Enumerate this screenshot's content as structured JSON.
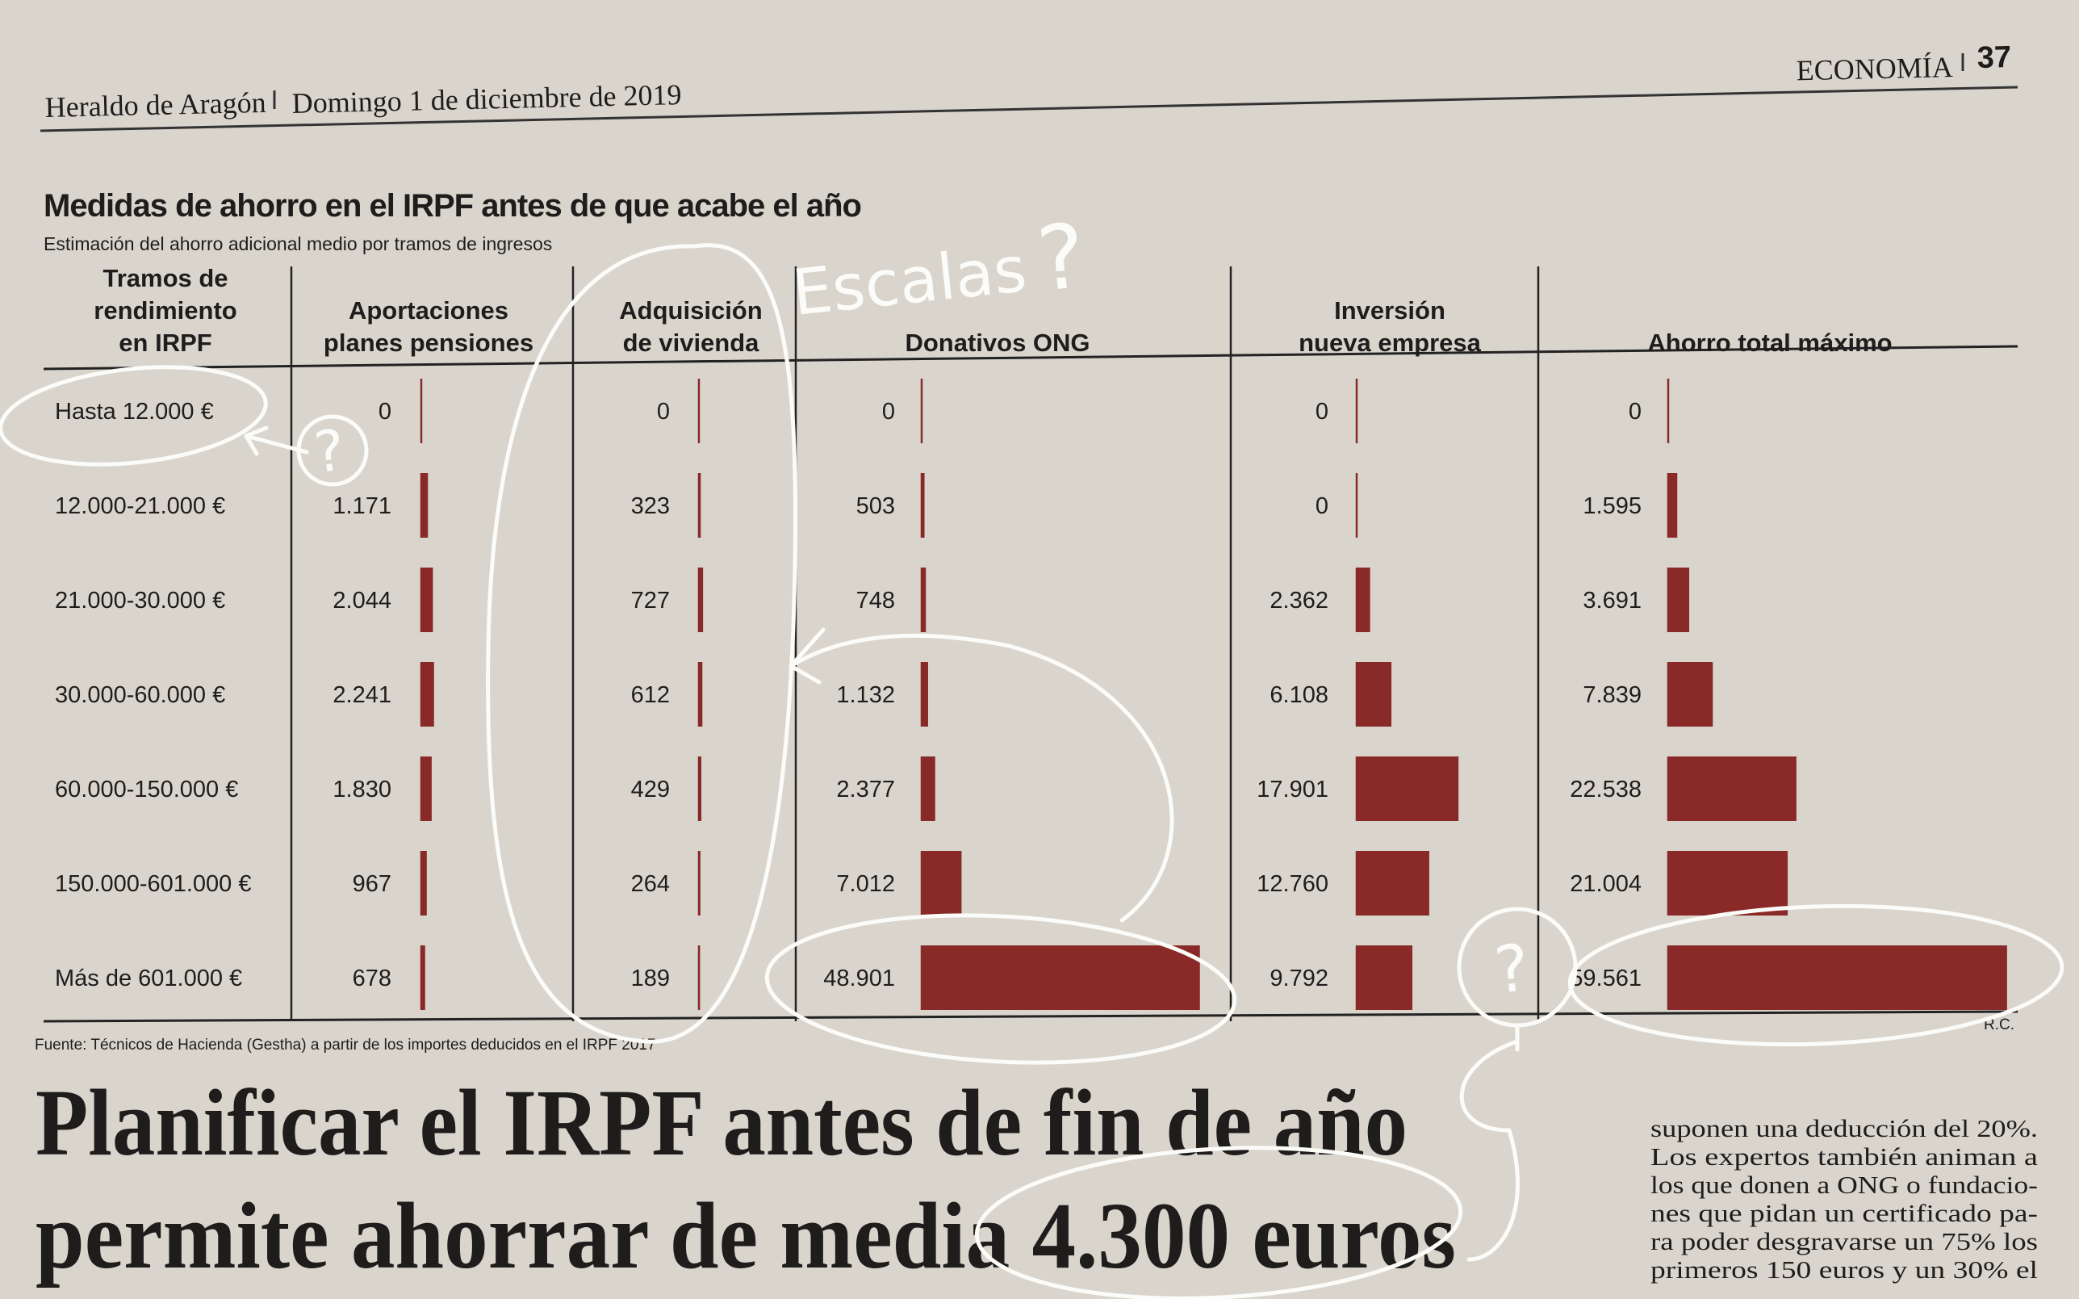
{
  "header": {
    "publication": "Heraldo de Aragón",
    "date": "Domingo 1 de diciembre de 2019",
    "section": "ECONOMÍA",
    "page": "37"
  },
  "graphic": {
    "title": "Medidas de ahorro en el IRPF antes de que acabe el año",
    "subtitle": "Estimación del ahorro adicional medio por tramos de ingresos",
    "row_header": [
      "Tramos de",
      "rendimiento",
      "en IRPF"
    ],
    "categories": [
      "Hasta 12.000 €",
      "12.000-21.000 €",
      "21.000-30.000 €",
      "30.000-60.000 €",
      "60.000-150.000 €",
      "150.000-601.000 €",
      "Más de 601.000 €"
    ],
    "color": "#8a2a28",
    "series": [
      {
        "name": [
          "Aportaciones",
          "planes pensiones"
        ],
        "values": [
          0,
          1171,
          2044,
          2241,
          1830,
          967,
          678
        ],
        "value_labels": [
          "0",
          "1.171",
          "2.044",
          "2.241",
          "1.830",
          "967",
          "678"
        ]
      },
      {
        "name": [
          "Adquisición",
          "de vivienda"
        ],
        "values": [
          0,
          323,
          727,
          612,
          429,
          264,
          189
        ],
        "value_labels": [
          "0",
          "323",
          "727",
          "612",
          "429",
          "264",
          "189"
        ]
      },
      {
        "name": [
          "Donativos ONG"
        ],
        "values": [
          0,
          503,
          748,
          1132,
          2377,
          7012,
          48901
        ],
        "value_labels": [
          "0",
          "503",
          "748",
          "1.132",
          "2.377",
          "7.012",
          "48.901"
        ]
      },
      {
        "name": [
          "Inversión",
          "nueva empresa"
        ],
        "values": [
          0,
          0,
          2362,
          6108,
          17901,
          12760,
          9792
        ],
        "value_labels": [
          "0",
          "0",
          "2.362",
          "6.108",
          "17.901",
          "12.760",
          "9.792"
        ]
      },
      {
        "name": [
          "Ahorro total máximo"
        ],
        "values": [
          0,
          1595,
          3691,
          7839,
          22538,
          21004,
          59561
        ],
        "value_labels": [
          "0",
          "1.595",
          "3.691",
          "7.839",
          "22.538",
          "21.004",
          "59.561"
        ]
      }
    ],
    "source": "Fuente: Técnicos de Hacienda (Gestha) a partir de los importes deducidos en el IRPF 2017",
    "credit": "R.C."
  },
  "article": {
    "headline": [
      "Planificar el IRPF antes de fin de año",
      "permite ahorrar de media 4.300 euros"
    ],
    "body": [
      "suponen una deducción del 20%.",
      "Los expertos también animan a",
      "los que donen a ONG o fundacio-",
      "nes que pidan un certificado pa-",
      "ra poder desgravarse un 75% los",
      "primeros 150 euros y un 30% el"
    ]
  },
  "annotations": [
    "Escalas",
    "?",
    "?",
    "?"
  ]
}
